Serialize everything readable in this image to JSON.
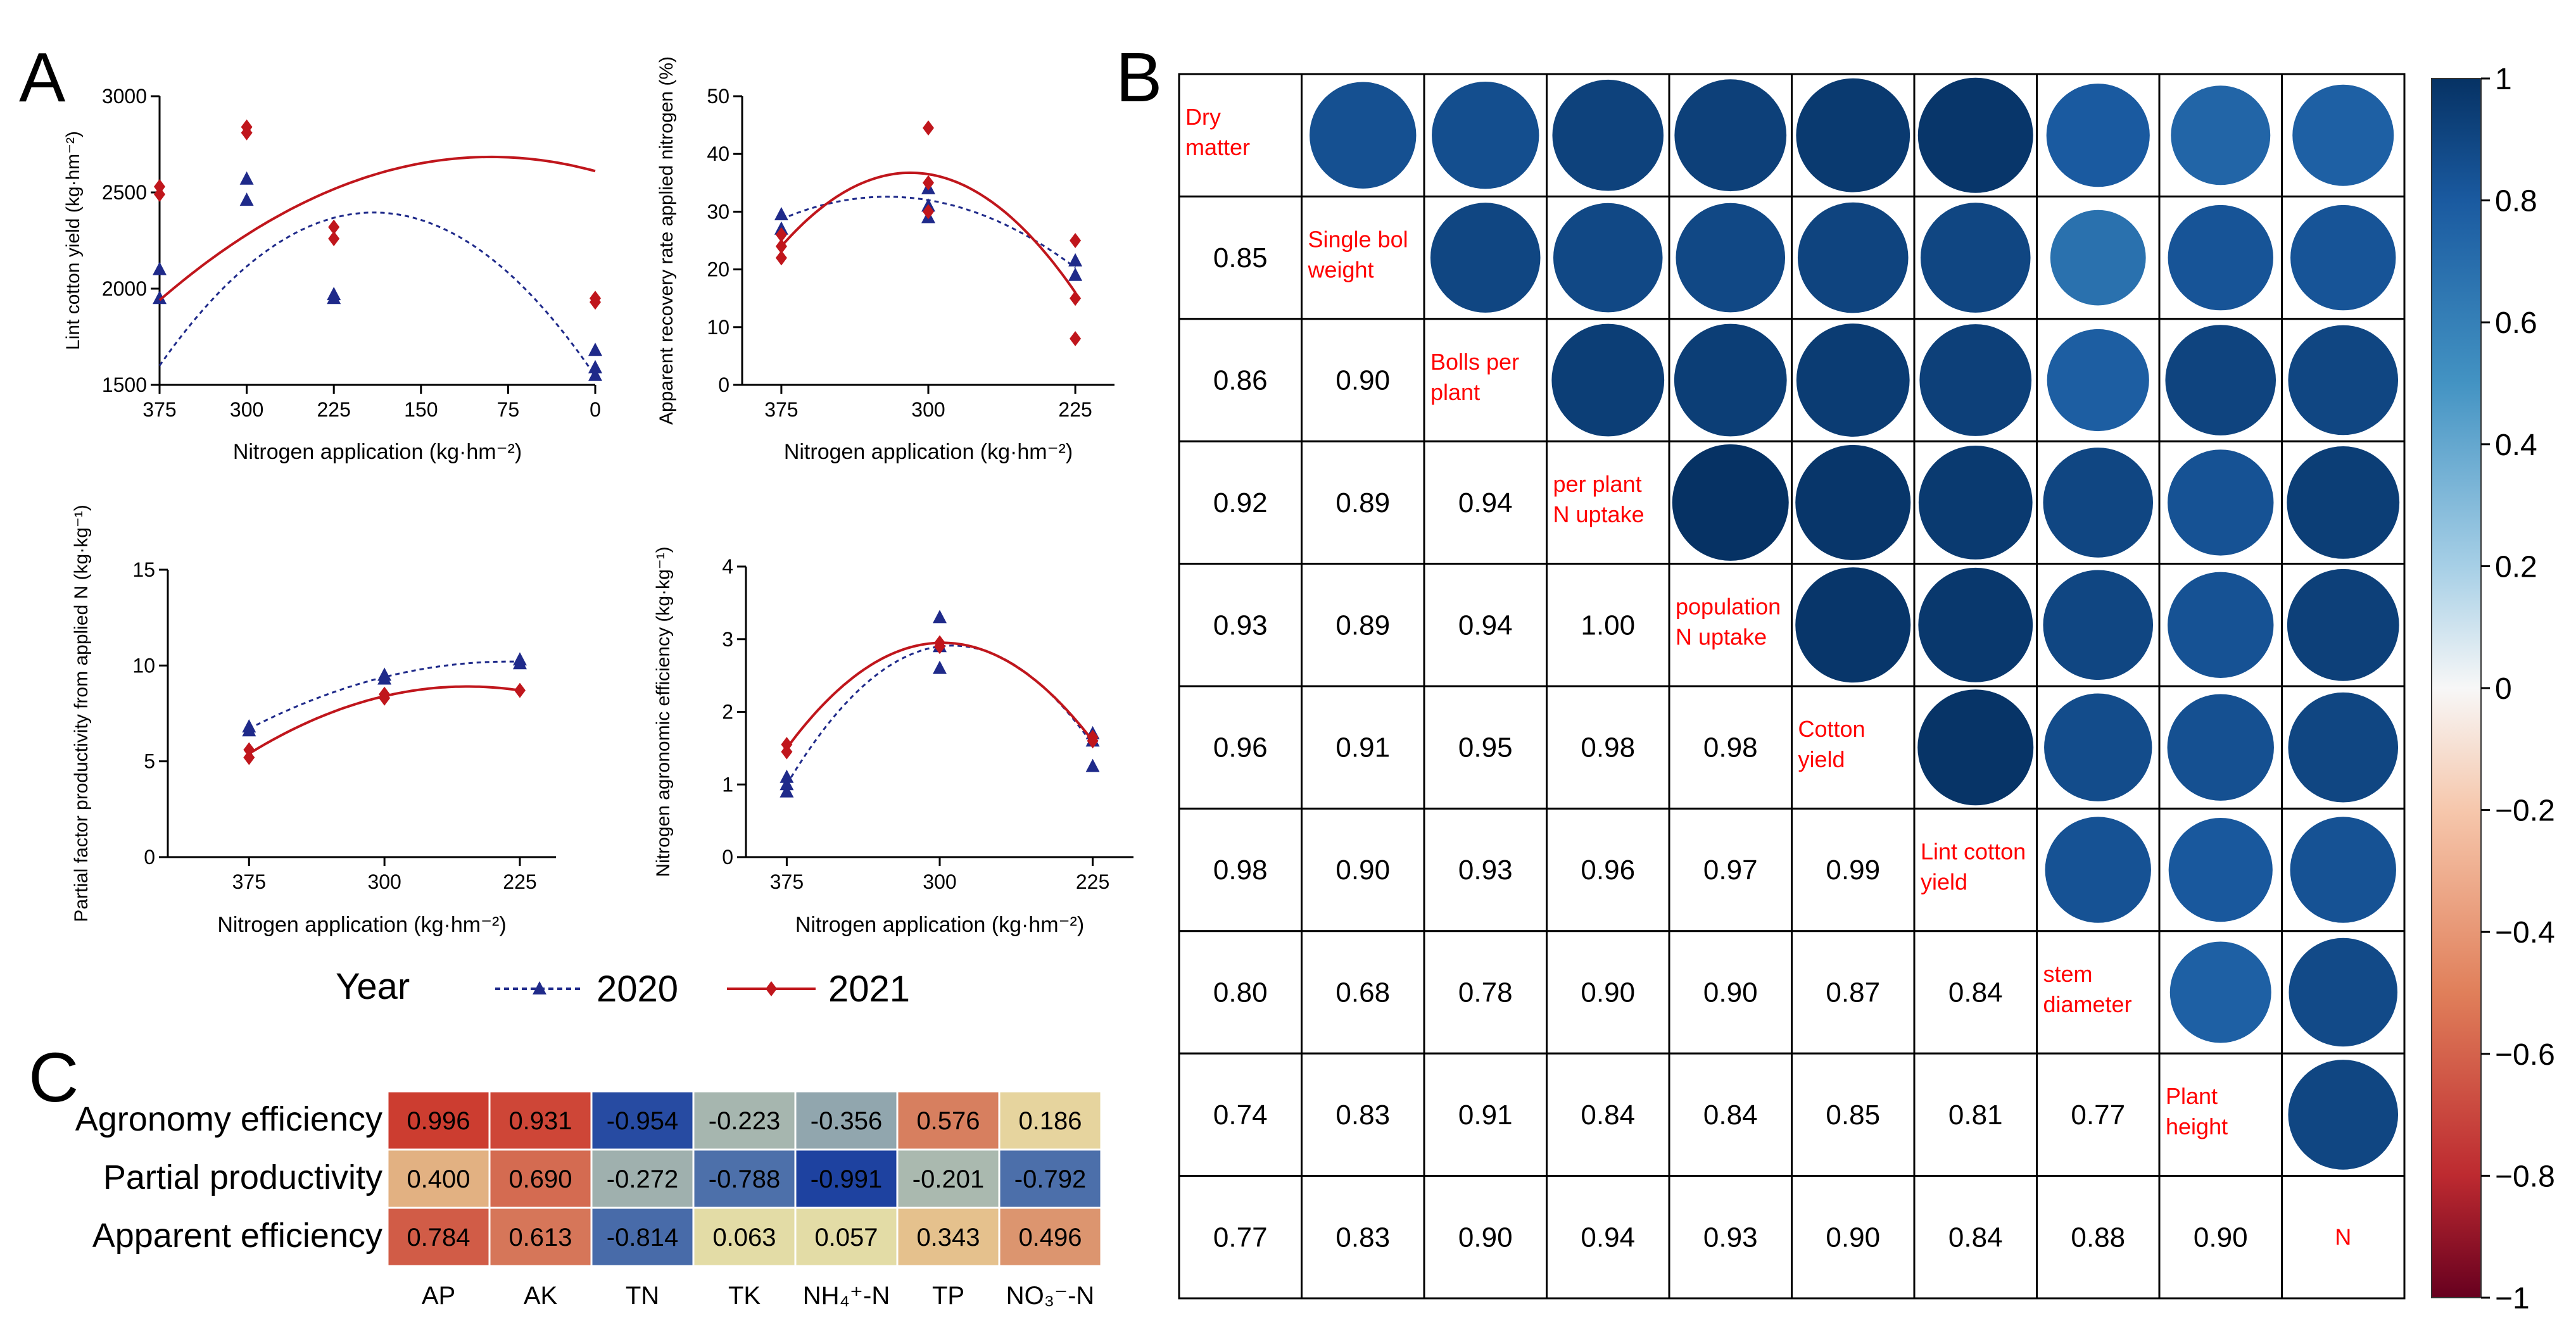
{
  "panel_labels": {
    "a": "A",
    "b": "B",
    "c": "C"
  },
  "legend": {
    "title": "Year",
    "entries": [
      {
        "name": "2020",
        "color": "#1f2a8a",
        "marker": "triangle",
        "line": "dashed"
      },
      {
        "name": "2021",
        "color": "#c0161c",
        "marker": "diamond",
        "line": "solid"
      }
    ]
  },
  "chart_data": [
    {
      "id": "lint-yield",
      "type": "scatter",
      "title": "",
      "xlabel": "Nitrogen application (kg·hm⁻²)",
      "ylabel": "Lint cotton yield (kg·hm⁻²)",
      "x_ticks": [
        375,
        300,
        225,
        150,
        75,
        0
      ],
      "y_ticks": [
        1500,
        2000,
        2500,
        3000
      ],
      "ylim": [
        1500,
        3000
      ],
      "xlim": [
        375,
        0
      ],
      "series": [
        {
          "name": "2020",
          "points": [
            [
              375,
              1950
            ],
            [
              375,
              2100
            ],
            [
              300,
              2460
            ],
            [
              300,
              2570
            ],
            [
              225,
              1950
            ],
            [
              225,
              1970
            ],
            [
              0,
              1550
            ],
            [
              0,
              1590
            ],
            [
              0,
              1680
            ]
          ],
          "fit": [
            1600,
            8.63,
            -0.0234
          ]
        },
        {
          "name": "2021",
          "points": [
            [
              375,
              2490
            ],
            [
              375,
              2530
            ],
            [
              300,
              2810
            ],
            [
              300,
              2840
            ],
            [
              225,
              2260
            ],
            [
              225,
              2320
            ],
            [
              0,
              1930
            ],
            [
              0,
              1950
            ]
          ],
          "fit": [
            1940,
            5.22,
            -0.00915
          ]
        }
      ]
    },
    {
      "id": "recovery-rate",
      "type": "scatter",
      "title": "",
      "xlabel": "Nitrogen application (kg·hm⁻²)",
      "ylabel": "Apparent recovery rate applied nitrogen (%)",
      "x_ticks": [
        375,
        300,
        225
      ],
      "y_ticks": [
        0,
        10,
        20,
        30,
        40,
        50
      ],
      "ylim": [
        0,
        50
      ],
      "xlim": [
        395,
        205
      ],
      "series": [
        {
          "name": "2020",
          "points": [
            [
              375,
              27
            ],
            [
              375,
              29.5
            ],
            [
              300,
              29
            ],
            [
              300,
              31
            ],
            [
              300,
              34
            ],
            [
              225,
              19
            ],
            [
              225,
              21.5
            ]
          ],
          "fit": [
            375,
            28.7,
            300,
            32,
            225,
            20.3
          ]
        },
        {
          "name": "2021",
          "points": [
            [
              375,
              22
            ],
            [
              375,
              24
            ],
            [
              375,
              26
            ],
            [
              300,
              44.5
            ],
            [
              300,
              30
            ],
            [
              300,
              35
            ],
            [
              225,
              8
            ],
            [
              225,
              15
            ],
            [
              225,
              25
            ]
          ],
          "fit": [
            375,
            24,
            300,
            36.5,
            225,
            16
          ]
        }
      ]
    },
    {
      "id": "partial-productivity",
      "type": "scatter",
      "title": "",
      "xlabel": "Nitrogen application (kg·hm⁻²)",
      "ylabel": "Partial factor productivity from applied N (kg·kg⁻¹)",
      "x_ticks": [
        375,
        300,
        225
      ],
      "y_ticks": [
        0,
        5,
        10,
        15
      ],
      "ylim": [
        0,
        15
      ],
      "xlim": [
        420,
        205
      ],
      "series": [
        {
          "name": "2020",
          "points": [
            [
              375,
              6.6
            ],
            [
              375,
              6.8
            ],
            [
              300,
              9.3
            ],
            [
              300,
              9.5
            ],
            [
              225,
              10.1
            ],
            [
              225,
              10.3
            ]
          ],
          "fit": [
            375,
            6.7,
            300,
            9.4,
            225,
            10.2
          ]
        },
        {
          "name": "2021",
          "points": [
            [
              375,
              5.2
            ],
            [
              375,
              5.6
            ],
            [
              300,
              8.3
            ],
            [
              300,
              8.5
            ],
            [
              225,
              8.7
            ]
          ],
          "fit": [
            375,
            5.4,
            300,
            8.4,
            225,
            8.7
          ]
        }
      ]
    },
    {
      "id": "agronomic-efficiency",
      "type": "scatter",
      "title": "",
      "xlabel": "Nitrogen application (kg·hm⁻²)",
      "ylabel": "Nitrogen agronomic efficiency (kg·kg⁻¹)",
      "x_ticks": [
        375,
        300,
        225
      ],
      "y_ticks": [
        0,
        1,
        2,
        3,
        4
      ],
      "ylim": [
        0,
        4
      ],
      "xlim": [
        395,
        205
      ],
      "series": [
        {
          "name": "2020",
          "points": [
            [
              375,
              0.9
            ],
            [
              375,
              1.0
            ],
            [
              375,
              1.1
            ],
            [
              300,
              2.6
            ],
            [
              300,
              2.9
            ],
            [
              300,
              3.3
            ],
            [
              225,
              1.25
            ],
            [
              225,
              1.6
            ],
            [
              225,
              1.7
            ]
          ],
          "fit": [
            375,
            1.0,
            300,
            2.9,
            225,
            1.55
          ]
        },
        {
          "name": "2021",
          "points": [
            [
              375,
              1.45
            ],
            [
              375,
              1.55
            ],
            [
              300,
              2.9
            ],
            [
              300,
              2.95
            ],
            [
              225,
              1.6
            ],
            [
              225,
              1.65
            ]
          ],
          "fit": [
            375,
            1.5,
            300,
            2.95,
            225,
            1.6
          ]
        }
      ]
    },
    {
      "id": "correlation-matrix",
      "type": "heatmap",
      "variables": [
        "Dry matter",
        "Single boll weight",
        "Bolls per plant",
        "per plant N uptake",
        "population N uptake",
        "Cotton yield",
        "Lint cotton yield",
        "stem diameter",
        "Plant height",
        "N"
      ],
      "diag_labels": [
        [
          "Dry",
          "matter"
        ],
        [
          "Single bol",
          "weight"
        ],
        [
          "Bolls per",
          "plant"
        ],
        [
          "per plant",
          "N uptake"
        ],
        [
          "population",
          "N uptake"
        ],
        [
          "Cotton",
          "yield"
        ],
        [
          "Lint cotton",
          "yield"
        ],
        [
          "stem",
          "diameter"
        ],
        [
          "Plant",
          "height"
        ],
        [
          "N"
        ]
      ],
      "lower": [
        [
          "0.85"
        ],
        [
          "0.86",
          "0.90"
        ],
        [
          "0.92",
          "0.89",
          "0.94"
        ],
        [
          "0.93",
          "0.89",
          "0.94",
          "1.00"
        ],
        [
          "0.96",
          "0.91",
          "0.95",
          "0.98",
          "0.98"
        ],
        [
          "0.98",
          "0.90",
          "0.93",
          "0.96",
          "0.97",
          "0.99"
        ],
        [
          "0.80",
          "0.68",
          "0.78",
          "0.90",
          "0.90",
          "0.87",
          "0.84"
        ],
        [
          "0.74",
          "0.83",
          "0.91",
          "0.84",
          "0.84",
          "0.85",
          "0.81",
          "0.77"
        ],
        [
          "0.77",
          "0.83",
          "0.90",
          "0.94",
          "0.93",
          "0.90",
          "0.84",
          "0.88",
          "0.90"
        ]
      ],
      "colorbar_ticks": [
        "1",
        "0.8",
        "0.6",
        "0.4",
        "0.2",
        "0",
        "−0.2",
        "−0.4",
        "−0.6",
        "−0.8",
        "−1"
      ],
      "colorbar_range": [
        -1,
        1
      ]
    },
    {
      "id": "soil-correlation",
      "type": "table",
      "rows": [
        "Agronomy efficiency",
        "Partial productivity",
        "Apparent efficiency"
      ],
      "columns": [
        "AP",
        "AK",
        "TN",
        "TK",
        "NH₄⁺-N",
        "TP",
        "NO₃⁻-N"
      ],
      "values": [
        [
          "0.996",
          "0.931",
          "-0.954",
          "-0.223",
          "-0.356",
          "0.576",
          "0.186"
        ],
        [
          "0.400",
          "0.690",
          "-0.272",
          "-0.788",
          "-0.991",
          "-0.201",
          "-0.792"
        ],
        [
          "0.784",
          "0.613",
          "-0.814",
          "0.063",
          "0.057",
          "0.343",
          "0.496"
        ]
      ]
    }
  ]
}
